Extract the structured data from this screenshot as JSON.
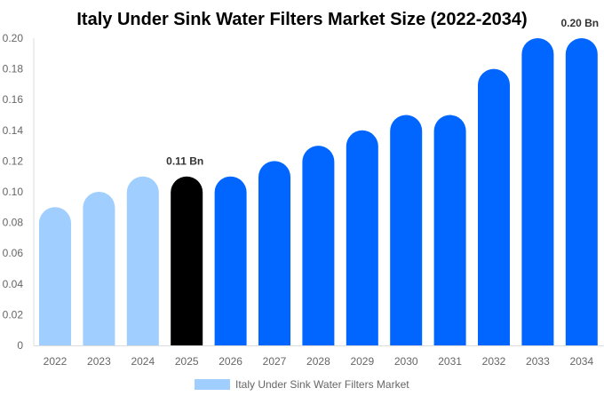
{
  "chart_data": {
    "type": "bar",
    "title": "Italy Under Sink Water Filters Market Size (2022-2034)",
    "xlabel": "",
    "ylabel": "",
    "ylim": [
      0,
      0.2
    ],
    "yticks": [
      "0",
      "0.02",
      "0.04",
      "0.06",
      "0.08",
      "0.10",
      "0.12",
      "0.14",
      "0.16",
      "0.18",
      "0.20"
    ],
    "categories": [
      "2022",
      "2023",
      "2024",
      "2025",
      "2026",
      "2027",
      "2028",
      "2029",
      "2030",
      "2031",
      "2032",
      "2033",
      "2034"
    ],
    "values": [
      0.09,
      0.1,
      0.11,
      0.11,
      0.11,
      0.12,
      0.13,
      0.14,
      0.15,
      0.15,
      0.18,
      0.2,
      0.2
    ],
    "bar_colors": [
      "#a0cfff",
      "#a0cfff",
      "#a0cfff",
      "#000000",
      "#0066ff",
      "#0066ff",
      "#0066ff",
      "#0066ff",
      "#0066ff",
      "#0066ff",
      "#0066ff",
      "#0066ff",
      "#0066ff"
    ],
    "data_labels": [
      {
        "category": "2025",
        "text": "0.11 Bn"
      },
      {
        "category": "2034",
        "text": "0.20 Bn"
      }
    ],
    "grid": false,
    "legend": {
      "position": "bottom",
      "entries": [
        {
          "label": "Italy Under Sink Water Filters Market",
          "color": "#a0cfff"
        }
      ]
    }
  }
}
